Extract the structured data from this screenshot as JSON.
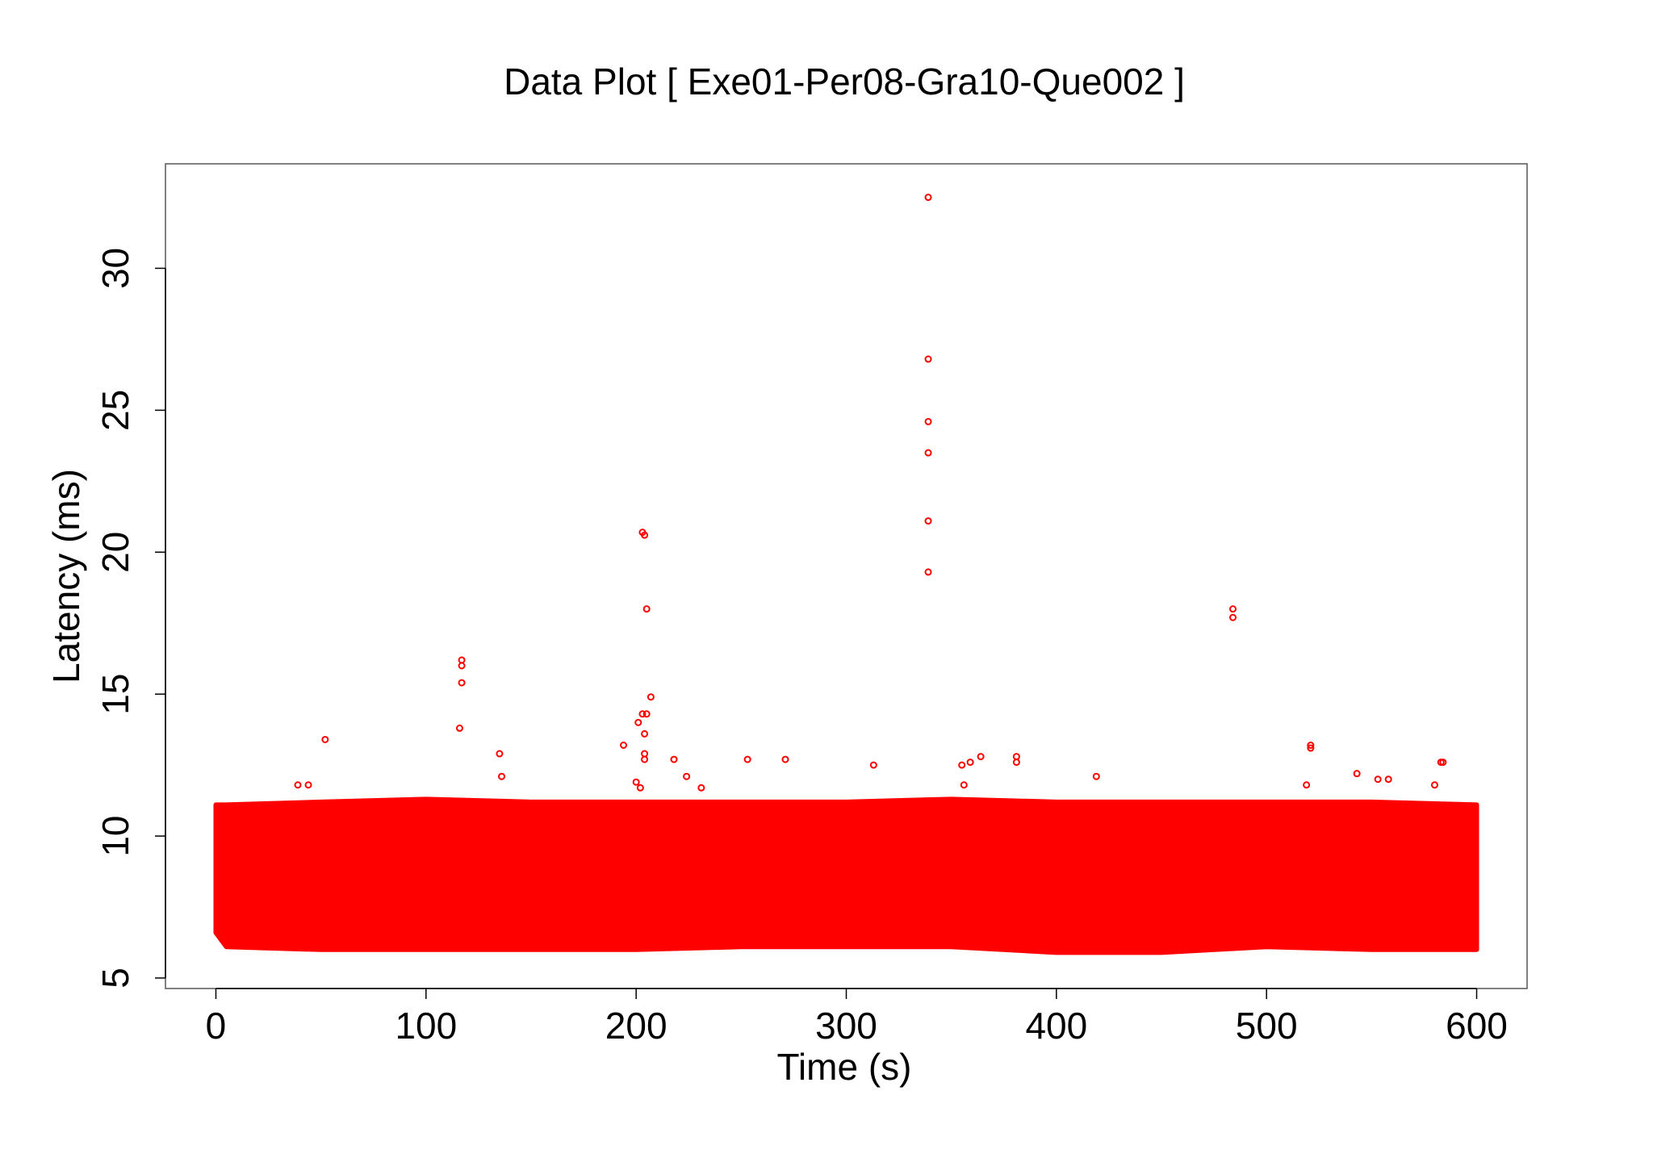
{
  "chart_data": {
    "type": "scatter",
    "title": "Data Plot [ Exe01-Per08-Gra10-Que002 ]",
    "x_label": "Time (s)",
    "y_label": "Latency (ms)",
    "xlim": [
      -24,
      624
    ],
    "ylim": [
      4.63,
      33.68
    ],
    "xticks": [
      0,
      100,
      200,
      300,
      400,
      500,
      600
    ],
    "yticks": [
      5,
      10,
      15,
      20,
      25,
      30
    ],
    "color": "#ff0000",
    "envelope": {
      "x": [
        0,
        5,
        50,
        100,
        150,
        200,
        250,
        300,
        350,
        400,
        450,
        500,
        550,
        600
      ],
      "lower": [
        6.6,
        6.1,
        6.0,
        6.0,
        6.0,
        6.0,
        6.1,
        6.1,
        6.1,
        5.9,
        5.9,
        6.1,
        6.0,
        6.0
      ],
      "upper": [
        11.1,
        11.1,
        11.2,
        11.3,
        11.2,
        11.2,
        11.2,
        11.2,
        11.3,
        11.2,
        11.2,
        11.2,
        11.2,
        11.1
      ]
    },
    "x": [
      52,
      39,
      44,
      117,
      117,
      117,
      116,
      135,
      136,
      194,
      200,
      201,
      203,
      205,
      204,
      204,
      204,
      207,
      203,
      204,
      205,
      202,
      218,
      224,
      231,
      253,
      271,
      313,
      339,
      339,
      339,
      339,
      339,
      339,
      355,
      356,
      359,
      364,
      381,
      381,
      419,
      484,
      484,
      519,
      521,
      521,
      543,
      553,
      558,
      580,
      584,
      583
    ],
    "values": [
      13.4,
      11.8,
      11.8,
      16.2,
      16.0,
      15.4,
      13.8,
      12.9,
      12.1,
      13.2,
      11.9,
      14.0,
      14.3,
      14.3,
      13.6,
      12.9,
      12.7,
      14.9,
      20.7,
      20.6,
      18.0,
      11.7,
      12.7,
      12.1,
      11.7,
      12.7,
      12.7,
      12.5,
      32.5,
      26.8,
      24.6,
      23.5,
      21.1,
      19.3,
      12.5,
      11.8,
      12.6,
      12.8,
      12.8,
      12.6,
      12.1,
      18.0,
      17.7,
      11.8,
      13.1,
      13.2,
      12.2,
      12.0,
      12.0,
      11.8,
      12.6,
      12.6
    ]
  }
}
